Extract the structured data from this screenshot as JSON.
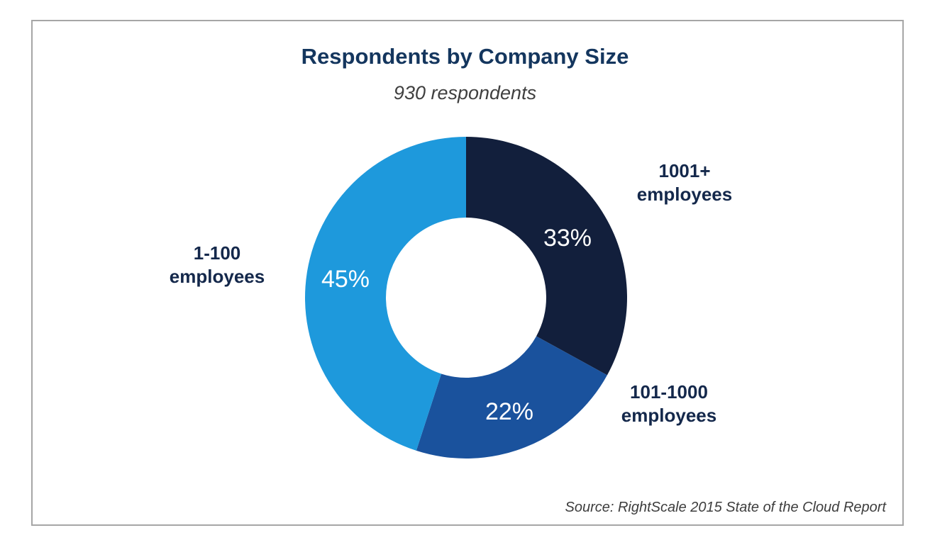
{
  "chart_data": {
    "type": "pie",
    "style": "donut",
    "title": "Respondents by Company Size",
    "subtitle": "930 respondents",
    "source": "Source: RightScale 2015 State of the Cloud Report",
    "slices": [
      {
        "name": "1001+ employees",
        "label_lines": [
          "1001+",
          "employees"
        ],
        "value": 33,
        "value_label": "33%",
        "color": "#121f3c"
      },
      {
        "name": "101-1000 employees",
        "label_lines": [
          "101-1000",
          "employees"
        ],
        "value": 22,
        "value_label": "22%",
        "color": "#1a529d"
      },
      {
        "name": "1-100 employees",
        "label_lines": [
          "1-100",
          "employees"
        ],
        "value": 45,
        "value_label": "45%",
        "color": "#1e99dc"
      }
    ]
  }
}
